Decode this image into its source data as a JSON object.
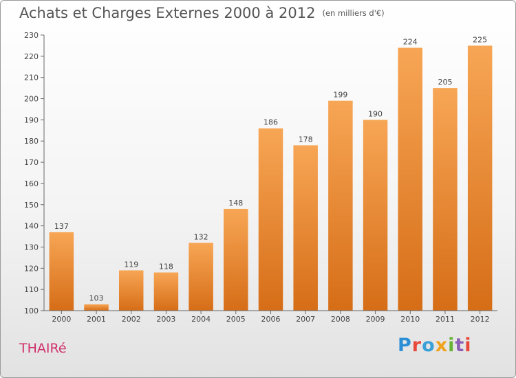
{
  "title": "Achats et Charges Externes 2000 à 2012",
  "unit": "(en milliers d'€)",
  "commune": "THAIRé",
  "logo": {
    "letters": [
      "P",
      "r",
      "o",
      "x",
      "i",
      "t",
      "i"
    ],
    "colors": [
      "#2c8fd6",
      "#e8483a",
      "#3aa1d8",
      "#f0a21c",
      "#67b234",
      "#8c5fb5",
      "#e8483a"
    ]
  },
  "chart_data": {
    "type": "bar",
    "categories": [
      "2000",
      "2001",
      "2002",
      "2003",
      "2004",
      "2005",
      "2006",
      "2007",
      "2008",
      "2009",
      "2010",
      "2011",
      "2012"
    ],
    "values": [
      137,
      103,
      119,
      118,
      132,
      148,
      186,
      178,
      199,
      190,
      224,
      205,
      225
    ],
    "ylim": [
      100,
      230
    ],
    "yticks": [
      100,
      110,
      120,
      130,
      140,
      150,
      160,
      170,
      180,
      190,
      200,
      210,
      220,
      230
    ],
    "grid": false,
    "bar_color": "#f0943c"
  }
}
